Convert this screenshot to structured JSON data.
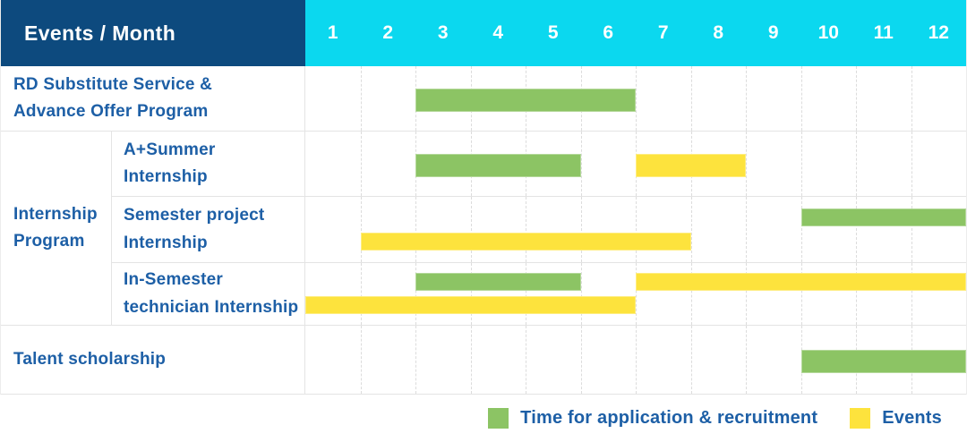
{
  "colors": {
    "navy": "#0d4a7e",
    "cyan": "#0bd8ef",
    "green": "#8cc464",
    "yellow": "#fde33d",
    "labelblue": "#1d5fa6"
  },
  "header": {
    "label": "Events / Month",
    "months": [
      "1",
      "2",
      "3",
      "4",
      "5",
      "6",
      "7",
      "8",
      "9",
      "10",
      "11",
      "12"
    ]
  },
  "group": {
    "label": "Internship\nProgram"
  },
  "rows": [
    {
      "label": "RD Substitute Service &\nAdvance Offer Program"
    },
    {
      "label": "A+Summer\nInternship"
    },
    {
      "label": "Semester project\nInternship"
    },
    {
      "label": "In-Semester\ntechnician Internship"
    },
    {
      "label": "Talent scholarship"
    }
  ],
  "legend": [
    {
      "key": "application",
      "label": "Time for application & recruitment",
      "color": "#8cc464"
    },
    {
      "key": "event",
      "label": "Events",
      "color": "#fde33d"
    }
  ],
  "chart_data": {
    "type": "bar",
    "subtype": "gantt-timeline",
    "title": "Events / Month",
    "x_axis": {
      "label": "Month",
      "ticks": [
        1,
        2,
        3,
        4,
        5,
        6,
        7,
        8,
        9,
        10,
        11,
        12
      ],
      "range": [
        1,
        12
      ]
    },
    "grid": "dashed-vertical",
    "legend_position": "bottom-right",
    "bar_types": {
      "application": {
        "label": "Time for application & recruitment",
        "color": "#8cc464"
      },
      "event": {
        "label": "Events",
        "color": "#fde33d"
      }
    },
    "rows": [
      {
        "label": "RD Substitute Service & Advance Offer Program",
        "bars": [
          {
            "type": "application",
            "start": 3,
            "end": 6,
            "line": null
          }
        ]
      },
      {
        "label": "A+Summer Internship",
        "group": "Internship Program",
        "bars": [
          {
            "type": "application",
            "start": 3,
            "end": 5,
            "line": null
          },
          {
            "type": "event",
            "start": 7,
            "end": 8,
            "line": null
          }
        ]
      },
      {
        "label": "Semester project Internship",
        "group": "Internship Program",
        "bars": [
          {
            "type": "application",
            "start": 10,
            "end": 12,
            "line": 0
          },
          {
            "type": "event",
            "start": 2,
            "end": 7,
            "line": 1
          }
        ]
      },
      {
        "label": "In-Semester technician Internship",
        "group": "Internship Program",
        "bars": [
          {
            "type": "application",
            "start": 3,
            "end": 5,
            "line": 0
          },
          {
            "type": "event",
            "start": 7,
            "end": 12,
            "line": 0
          },
          {
            "type": "event",
            "start": 1,
            "end": 6,
            "line": 1
          }
        ]
      },
      {
        "label": "Talent scholarship",
        "bars": [
          {
            "type": "application",
            "start": 10,
            "end": 12,
            "line": null
          }
        ]
      }
    ]
  }
}
